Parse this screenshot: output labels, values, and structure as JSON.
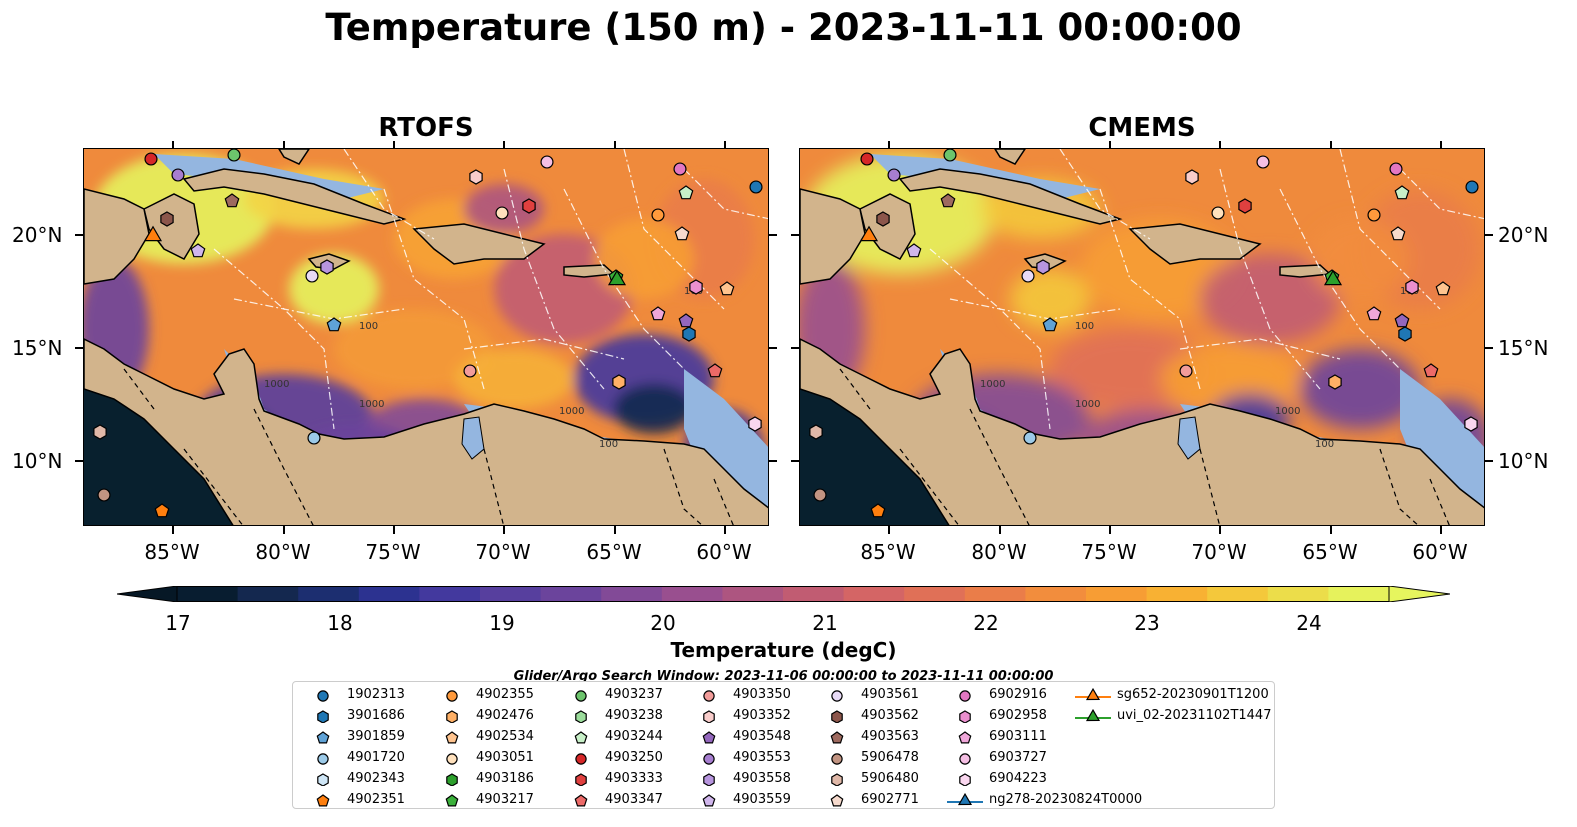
{
  "figure": {
    "title": "Temperature (150 m) - 2023-11-11 00:00:00",
    "panels": [
      "RTOFS",
      "CMEMS"
    ],
    "lon_labels": [
      "85°W",
      "80°W",
      "75°W",
      "70°W",
      "65°W",
      "60°W"
    ],
    "lat_labels": [
      "20°N",
      "15°N",
      "10°N"
    ],
    "colorbar": {
      "label": "Temperature (degC)",
      "ticks": [
        "17",
        "18",
        "19",
        "20",
        "21",
        "22",
        "23",
        "24"
      ],
      "colors": [
        "#081d30",
        "#14284f",
        "#1c2e70",
        "#2c3290",
        "#43399e",
        "#573f9e",
        "#6b449c",
        "#824a97",
        "#994f8f",
        "#ad5580",
        "#c15c72",
        "#d46565",
        "#e07057",
        "#ea7d49",
        "#f28d3d",
        "#f79d34",
        "#f8b133",
        "#f4c83b",
        "#ecdd4a",
        "#e6f25c"
      ],
      "extend_low": "#061826",
      "extend_high": "#e6f55e"
    },
    "contour_labels": [
      "100",
      "1000",
      "1000",
      "1000",
      "100",
      "100"
    ],
    "search_window": "Glider/Argo Search Window: 2023-11-06 00:00:00 to 2023-11-11 00:00:00",
    "legend": [
      {
        "id": "1902313",
        "marker": "circle",
        "color": "#1f77b4"
      },
      {
        "id": "3901686",
        "marker": "hexagon",
        "color": "#1f77b4"
      },
      {
        "id": "3901859",
        "marker": "pentagon",
        "color": "#5fa2d6"
      },
      {
        "id": "4901720",
        "marker": "circle",
        "color": "#9ccae8"
      },
      {
        "id": "4902343",
        "marker": "hexagon",
        "color": "#cfe6f6"
      },
      {
        "id": "4902351",
        "marker": "pentagon",
        "color": "#ff7f0e"
      },
      {
        "id": "4902355",
        "marker": "circle",
        "color": "#ff9a3c"
      },
      {
        "id": "4902476",
        "marker": "hexagon",
        "color": "#ffb066"
      },
      {
        "id": "4902534",
        "marker": "pentagon",
        "color": "#ffc48f"
      },
      {
        "id": "4903051",
        "marker": "circle",
        "color": "#ffe1bd"
      },
      {
        "id": "4903186",
        "marker": "hexagon",
        "color": "#2ca02c"
      },
      {
        "id": "4903217",
        "marker": "pentagon",
        "color": "#3ab03a"
      },
      {
        "id": "4903237",
        "marker": "circle",
        "color": "#6cc46c"
      },
      {
        "id": "4903238",
        "marker": "hexagon",
        "color": "#9bdc9b"
      },
      {
        "id": "4903244",
        "marker": "pentagon",
        "color": "#c8f0c8"
      },
      {
        "id": "4903250",
        "marker": "circle",
        "color": "#d62728"
      },
      {
        "id": "4903333",
        "marker": "hexagon",
        "color": "#e0403f"
      },
      {
        "id": "4903347",
        "marker": "pentagon",
        "color": "#ec6a68"
      },
      {
        "id": "4903350",
        "marker": "circle",
        "color": "#f29c9a"
      },
      {
        "id": "4903352",
        "marker": "hexagon",
        "color": "#f9cdcb"
      },
      {
        "id": "4903548",
        "marker": "pentagon",
        "color": "#9467bd"
      },
      {
        "id": "4903553",
        "marker": "circle",
        "color": "#a77ed0"
      },
      {
        "id": "4903558",
        "marker": "hexagon",
        "color": "#b795de"
      },
      {
        "id": "4903559",
        "marker": "pentagon",
        "color": "#d0b6ec"
      },
      {
        "id": "4903561",
        "marker": "circle",
        "color": "#e8daf6"
      },
      {
        "id": "4903562",
        "marker": "hexagon",
        "color": "#8c564b"
      },
      {
        "id": "4903563",
        "marker": "pentagon",
        "color": "#9e6a5f"
      },
      {
        "id": "5906478",
        "marker": "circle",
        "color": "#c29482"
      },
      {
        "id": "5906480",
        "marker": "hexagon",
        "color": "#e0b8a8"
      },
      {
        "id": "6902771",
        "marker": "pentagon",
        "color": "#f6dacd"
      },
      {
        "id": "6902916",
        "marker": "circle",
        "color": "#e377c2"
      },
      {
        "id": "6902958",
        "marker": "hexagon",
        "color": "#ea8fce"
      },
      {
        "id": "6903111",
        "marker": "pentagon",
        "color": "#f0a7da"
      },
      {
        "id": "6903727",
        "marker": "circle",
        "color": "#f5bfe4"
      },
      {
        "id": "6904223",
        "marker": "hexagon",
        "color": "#fad7ef"
      },
      {
        "id": "ng278-20230824T0000",
        "marker": "triangle",
        "color": "#1f77b4"
      },
      {
        "id": "sg652-20230901T1200",
        "marker": "triangle",
        "color": "#ff7f0e"
      },
      {
        "id": "uvi_02-20231102T1447",
        "marker": "triangle",
        "color": "#2ca02c"
      }
    ],
    "colors": {
      "land": "#d2b48c",
      "shelf": "#94b6e0",
      "deep_cold": "#08202e",
      "warm": "#ef8a3c",
      "hot": "#e6f25c"
    }
  }
}
